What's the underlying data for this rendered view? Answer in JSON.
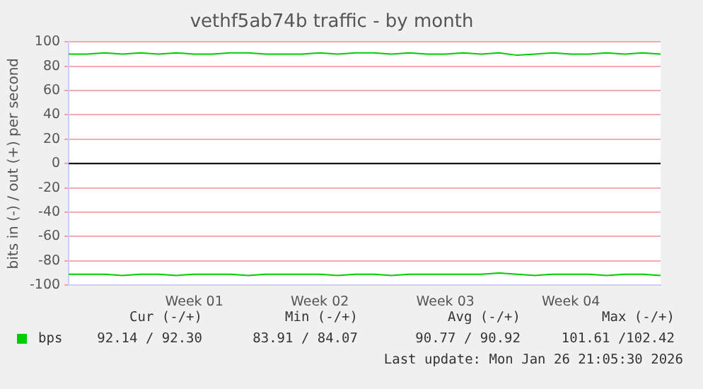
{
  "chart_data": {
    "type": "line",
    "title": "vethf5ab74b traffic - by month",
    "ylabel": "bits in (-) / out (+) per second",
    "categories": [
      null,
      null,
      null,
      null,
      null,
      null,
      null,
      "Week 01",
      null,
      null,
      null,
      null,
      null,
      null,
      "Week 02",
      null,
      null,
      null,
      null,
      null,
      null,
      "Week 03",
      null,
      null,
      null,
      null,
      null,
      null,
      "Week 04",
      null,
      null,
      null,
      null,
      null
    ],
    "series": [
      {
        "name": "bps",
        "color": "#00cc00",
        "values": [
          90,
          90,
          91,
          90,
          91,
          90,
          91,
          90,
          90,
          91,
          91,
          90,
          90,
          90,
          91,
          90,
          91,
          91,
          90,
          91,
          90,
          90,
          91,
          90,
          91,
          89,
          90,
          91,
          90,
          90,
          91,
          90,
          91,
          90
        ]
      },
      {
        "color": "#00cc00",
        "values": [
          -91,
          -91,
          -91,
          -92,
          -91,
          -91,
          -92,
          -91,
          -91,
          -91,
          -92,
          -91,
          -91,
          -91,
          -91,
          -92,
          -91,
          -91,
          -92,
          -91,
          -91,
          -91,
          -91,
          -91,
          -90,
          -91,
          -92,
          -91,
          -91,
          -91,
          -92,
          -91,
          -91,
          -92
        ]
      }
    ],
    "ylim": [
      -100,
      100
    ],
    "yticks": [
      -100,
      -80,
      -60,
      -40,
      -20,
      0,
      20,
      40,
      60,
      80,
      100
    ],
    "grid": "y",
    "legend": "bottom left",
    "marker": "none",
    "line_style": "solid",
    "ref_lines": [
      {
        "axis": "y",
        "value": 0,
        "color": "#000000"
      }
    ],
    "annotations": [
      "Cur (-/+)",
      "Min (-/+)",
      "Avg (-/+)",
      "Max (-/+)",
      "92.14 / 92.30",
      "83.91 / 84.07",
      "90.77 / 90.92",
      "101.61 /102.42",
      "Last update: Mon Jan 26 21:05:30 2026"
    ]
  }
}
